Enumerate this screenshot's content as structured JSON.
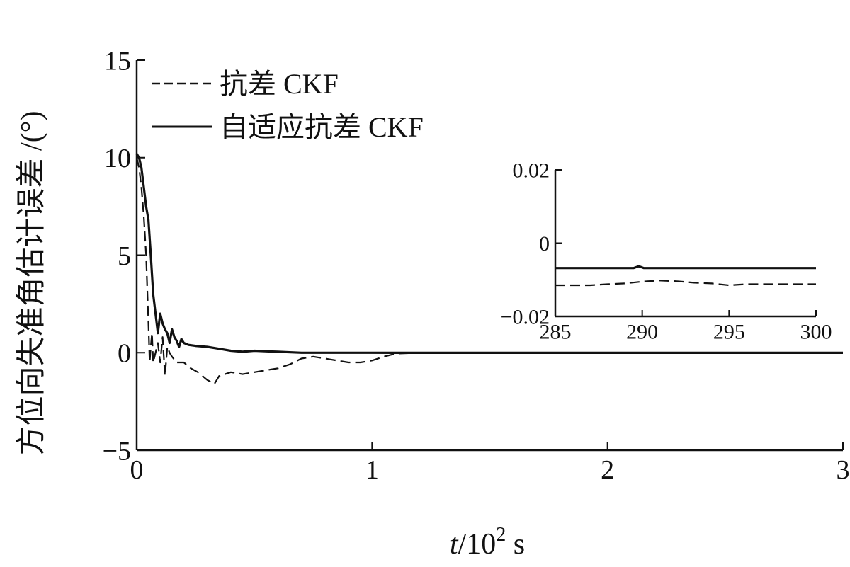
{
  "chart_data": [
    {
      "type": "line",
      "ylabel": "方位向失准角估计误差 /(°)",
      "xlabel_italic": "t",
      "xlabel_rest": "/10",
      "xlabel_sup": "2",
      "xlabel_unit": " s",
      "xlim": [
        0,
        3
      ],
      "ylim": [
        -5,
        15
      ],
      "xticks": [
        "0",
        "1",
        "2",
        "3"
      ],
      "yticks": [
        "−5",
        "0",
        "5",
        "10",
        "15"
      ],
      "legend_position": "top-left",
      "series": [
        {
          "name": "抗差 CKF",
          "style": "dashed",
          "x": [
            0,
            0.01,
            0.02,
            0.03,
            0.04,
            0.05,
            0.055,
            0.06,
            0.065,
            0.07,
            0.08,
            0.09,
            0.1,
            0.11,
            0.12,
            0.13,
            0.14,
            0.15,
            0.17,
            0.2,
            0.23,
            0.26,
            0.3,
            0.33,
            0.35,
            0.4,
            0.45,
            0.5,
            0.55,
            0.6,
            0.65,
            0.7,
            0.75,
            0.8,
            0.85,
            0.9,
            0.95,
            1.0,
            1.05,
            1.1,
            1.2,
            1.3,
            1.5,
            2.0,
            2.5
          ],
          "values": [
            10.0,
            9.5,
            8.5,
            7.0,
            5.0,
            1.5,
            -0.5,
            0.3,
            1.0,
            -0.5,
            0.0,
            0.5,
            -0.5,
            0.8,
            -1.2,
            0.3,
            0.0,
            -0.2,
            -0.5,
            -0.5,
            -0.8,
            -1.0,
            -1.4,
            -1.6,
            -1.2,
            -1.0,
            -1.1,
            -1.0,
            -0.9,
            -0.8,
            -0.6,
            -0.3,
            -0.2,
            -0.3,
            -0.4,
            -0.5,
            -0.5,
            -0.4,
            -0.2,
            -0.05,
            0.0,
            -0.012,
            -0.012,
            -0.012,
            -0.012
          ]
        },
        {
          "name": "自适应抗差 CKF",
          "style": "solid",
          "x": [
            0,
            0.01,
            0.02,
            0.03,
            0.04,
            0.05,
            0.06,
            0.07,
            0.08,
            0.09,
            0.1,
            0.11,
            0.12,
            0.13,
            0.14,
            0.15,
            0.16,
            0.17,
            0.18,
            0.19,
            0.2,
            0.22,
            0.25,
            0.3,
            0.35,
            0.4,
            0.45,
            0.5,
            0.6,
            0.7,
            0.8,
            0.9,
            1.0,
            1.1,
            1.5,
            2.0,
            2.5,
            3.0
          ],
          "values": [
            10.2,
            10.0,
            9.5,
            8.5,
            7.5,
            6.8,
            5.0,
            3.0,
            2.0,
            1.0,
            2.0,
            1.5,
            1.2,
            1.0,
            0.5,
            1.2,
            0.8,
            0.6,
            0.3,
            0.7,
            0.5,
            0.4,
            0.35,
            0.3,
            0.2,
            0.1,
            0.05,
            0.1,
            0.05,
            0.0,
            0.0,
            0.0,
            0.0,
            -0.007,
            -0.007,
            -0.007,
            -0.007,
            -0.007
          ]
        }
      ]
    },
    {
      "type": "line",
      "inset": true,
      "xlim": [
        285,
        300
      ],
      "ylim": [
        -0.02,
        0.02
      ],
      "xticks": [
        "285",
        "290",
        "295",
        "300"
      ],
      "yticks": [
        "−0.02",
        "0",
        "0.02"
      ],
      "series": [
        {
          "name": "抗差 CKF",
          "style": "dashed",
          "x": [
            285,
            287,
            288,
            289,
            290,
            291,
            292,
            293,
            294,
            295,
            296,
            298,
            300
          ],
          "values": [
            -0.0115,
            -0.0115,
            -0.0112,
            -0.011,
            -0.0105,
            -0.0102,
            -0.0104,
            -0.0108,
            -0.011,
            -0.0115,
            -0.0112,
            -0.0112,
            -0.0112
          ]
        },
        {
          "name": "自适应抗差 CKF",
          "style": "solid",
          "x": [
            285,
            289.5,
            289.8,
            290.1,
            300
          ],
          "values": [
            -0.0068,
            -0.0068,
            -0.0063,
            -0.0068,
            -0.0068
          ]
        }
      ]
    }
  ]
}
